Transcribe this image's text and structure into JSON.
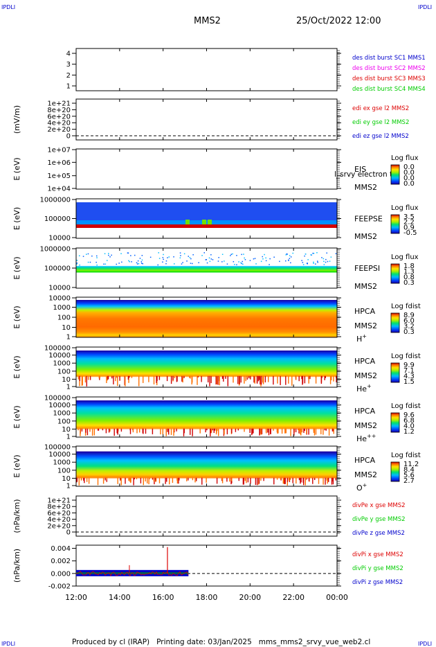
{
  "header": {
    "corner_label": "IPDLI",
    "spacecraft": "MMS2",
    "datetime": "25/Oct/2022 12:00"
  },
  "footer": {
    "text": "Produced by cl (IRAP)   Printing date: 03/Jan/2025   mms_mms2_srvy_vue_web2.cl"
  },
  "colors": {
    "red": "#dd0000",
    "green": "#00cc00",
    "blue": "#0000cc",
    "magenta": "#ee00ee"
  },
  "chart_data": {
    "type": "multi-panel time series / spectrogram",
    "time_axis": {
      "range": [
        "12:00",
        "00:00"
      ],
      "tick_labels": [
        "12:00",
        "14:00",
        "16:00",
        "18:00",
        "20:00",
        "22:00",
        "00:00"
      ]
    },
    "panels": [
      {
        "id": "p1",
        "type": "line",
        "ylabel": "",
        "yticks": [
          "1",
          "2",
          "3",
          "4"
        ],
        "legend": [
          {
            "text": "des dist burst SC1 MMS1",
            "color": "#0000cc"
          },
          {
            "text": "des dist burst SC2 MMS2",
            "color": "#ee00ee"
          },
          {
            "text": "des dist burst SC3 MMS3",
            "color": "#dd0000"
          },
          {
            "text": "des dist burst SC4 MMS4",
            "color": "#00cc00"
          }
        ]
      },
      {
        "id": "p2",
        "type": "line",
        "ylabel": "(mV/m)",
        "yticks": [
          "0",
          "2e+20",
          "4e+20",
          "6e+20",
          "8e+20",
          "1e+21"
        ],
        "zero_line": true,
        "legend": [
          {
            "text": "edi ex gse l2 MMS2",
            "color": "#dd0000"
          },
          {
            "text": "edi ey gse l2 MMS2",
            "color": "#00cc00"
          },
          {
            "text": "edi ez gse l2 MMS2",
            "color": "#0000cc"
          }
        ]
      },
      {
        "id": "p3",
        "type": "heatmap",
        "ylabel": "E (eV)",
        "yticks": [
          "1e+04",
          "1e+05",
          "1e+06",
          "1e+07"
        ],
        "instrument": "EIS",
        "sublabel": "MMS2",
        "overlay_text": "l_srvy electron to",
        "cbar_title": "Log flux",
        "cbar_ticks": [
          "0.0",
          "0.0",
          "0.0",
          "0.0"
        ]
      },
      {
        "id": "p4",
        "type": "heatmap",
        "ylabel": "E (eV)",
        "yticks": [
          "10000",
          "100000",
          "1000000"
        ],
        "instrument": "FEEPSE",
        "sublabel": "MMS2",
        "cbar_title": "Log flux",
        "cbar_ticks": [
          "3.5",
          "2.2",
          "0.9",
          "-0.5"
        ]
      },
      {
        "id": "p5",
        "type": "heatmap",
        "ylabel": "E (eV)",
        "yticks": [
          "10000",
          "100000",
          "1000000"
        ],
        "instrument": "FEEPSI",
        "sublabel": "MMS2",
        "cbar_title": "Log flux",
        "cbar_ticks": [
          "1.8",
          "1.3",
          "0.8",
          "0.3"
        ]
      },
      {
        "id": "p6",
        "type": "heatmap",
        "ylabel": "E (eV)",
        "yticks": [
          "1",
          "10",
          "100",
          "1000",
          "10000"
        ],
        "instrument": "HPCA",
        "sublabel": "MMS2",
        "species": "H",
        "charge": "+",
        "cbar_title": "Log fdist",
        "cbar_ticks": [
          "8.9",
          "6.0",
          "3.2",
          "0.3"
        ]
      },
      {
        "id": "p7",
        "type": "heatmap",
        "ylabel": "E (eV)",
        "yticks": [
          "1",
          "10",
          "100",
          "1000",
          "10000",
          "100000"
        ],
        "instrument": "HPCA",
        "sublabel": "MMS2",
        "species": "He",
        "charge": "+",
        "cbar_title": "Log fdist",
        "cbar_ticks": [
          "9.9",
          "7.1",
          "4.3",
          "1.5"
        ]
      },
      {
        "id": "p8",
        "type": "heatmap",
        "ylabel": "E (eV)",
        "yticks": [
          "1",
          "10",
          "100",
          "1000",
          "10000",
          "100000"
        ],
        "instrument": "HPCA",
        "sublabel": "MMS2",
        "species": "He",
        "charge": "++",
        "cbar_title": "Log fdist",
        "cbar_ticks": [
          "9.6",
          "6.8",
          "4.0",
          "1.2"
        ]
      },
      {
        "id": "p9",
        "type": "heatmap",
        "ylabel": "E (eV)",
        "yticks": [
          "1",
          "10",
          "100",
          "1000",
          "10000",
          "100000"
        ],
        "instrument": "HPCA",
        "sublabel": "MMS2",
        "species": "O",
        "charge": "+",
        "cbar_title": "Log fdist",
        "cbar_ticks": [
          "11.2",
          "8.4",
          "5.6",
          "2.7"
        ]
      },
      {
        "id": "p10",
        "type": "line",
        "ylabel": "(nPa/km)",
        "yticks": [
          "0",
          "2e+20",
          "4e+20",
          "6e+20",
          "8e+20",
          "1e+21"
        ],
        "zero_line": true,
        "legend": [
          {
            "text": "divPe x gse MMS2",
            "color": "#dd0000"
          },
          {
            "text": "divPe y gse MMS2",
            "color": "#00cc00"
          },
          {
            "text": "divPe z gse MMS2",
            "color": "#0000cc"
          }
        ]
      },
      {
        "id": "p11",
        "type": "line",
        "ylabel": "(nPa/km)",
        "yticks": [
          "-0.002",
          "0.000",
          "0.002",
          "0.004"
        ],
        "ylim": [
          -0.002,
          0.0045
        ],
        "zero_line": true,
        "data_time_range": [
          "12:00",
          "17:10"
        ],
        "spike": {
          "time": "16:12",
          "value": 0.0042
        },
        "legend": [
          {
            "text": "divPi x gse MMS2",
            "color": "#dd0000"
          },
          {
            "text": "divPi y gse MMS2",
            "color": "#00cc00"
          },
          {
            "text": "divPi z gse MMS2",
            "color": "#0000cc"
          }
        ]
      }
    ]
  }
}
